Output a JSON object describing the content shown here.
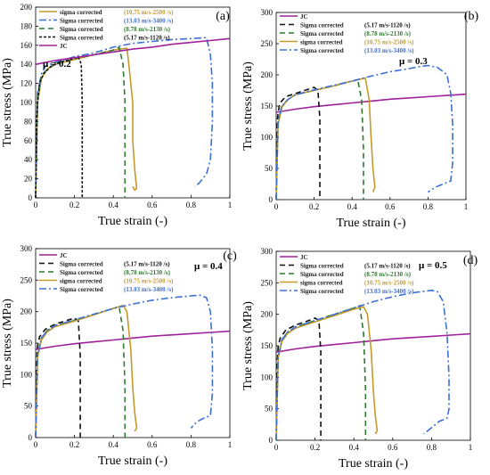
{
  "chart_data": [
    {
      "type": "line",
      "panel_label": "(a)",
      "mu_label": "μ = 0.2",
      "xlabel": "True strain (-)",
      "ylabel": "True stress (MPa)",
      "xlim": [
        0,
        1
      ],
      "ylim": [
        0,
        200
      ],
      "xticks": [
        "0",
        "0.2",
        "0.4",
        "0.6",
        "0.8",
        "1"
      ],
      "yticks": [
        "0",
        "20",
        "40",
        "60",
        "80",
        "100",
        "120",
        "140",
        "160",
        "180",
        "200"
      ],
      "xtick_values": [
        0,
        0.2,
        0.4,
        0.6,
        0.8,
        1
      ],
      "ytick_values": [
        0,
        20,
        40,
        60,
        80,
        100,
        120,
        140,
        160,
        180,
        200
      ],
      "legend_position": "top-left",
      "legend": [
        "sigma corrected",
        "Sigma corrected",
        "Sigma corrected",
        "Sigma corrected",
        "JC"
      ],
      "legend_condition": [
        "(10.75 m/s-2500 /s)",
        "(13.03 m/s-3400 /s)",
        "(8.78 m/s-2130 /s)",
        "(5.17 m/s-1120 /s)",
        ""
      ],
      "series": [
        {
          "color": "#c49a2a",
          "dash": "",
          "x": [
            0,
            0.01,
            0.03,
            0.06,
            0.1,
            0.2,
            0.3,
            0.4,
            0.47,
            0.48,
            0.5,
            0.5,
            0.51,
            0.52,
            0.51,
            0.5
          ],
          "y": [
            0,
            100,
            125,
            135,
            140,
            145,
            150,
            155,
            157,
            140,
            100,
            60,
            30,
            10,
            8,
            12
          ]
        },
        {
          "color": "#3b6fd6",
          "dash": "8,3,2,3",
          "x": [
            0,
            0.01,
            0.03,
            0.05,
            0.1,
            0.2,
            0.3,
            0.4,
            0.5,
            0.6,
            0.7,
            0.8,
            0.88,
            0.9,
            0.91,
            0.91,
            0.9,
            0.88,
            0.86,
            0.84,
            0.82
          ],
          "y": [
            0,
            110,
            130,
            138,
            142,
            148,
            152,
            158,
            162,
            164,
            166,
            167,
            168,
            150,
            120,
            80,
            40,
            25,
            20,
            15,
            12
          ]
        },
        {
          "color": "#2f7a2f",
          "dash": "6,4",
          "x": [
            0,
            0.01,
            0.03,
            0.06,
            0.1,
            0.2,
            0.3,
            0.4,
            0.43,
            0.45,
            0.46,
            0.46,
            0.46
          ],
          "y": [
            0,
            105,
            128,
            135,
            140,
            146,
            150,
            155,
            158,
            140,
            100,
            50,
            0
          ]
        },
        {
          "color": "#111111",
          "dash": "3,2",
          "x": [
            0,
            0.005,
            0.01,
            0.02,
            0.04,
            0.08,
            0.12,
            0.18,
            0.22,
            0.235,
            0.24,
            0.24,
            0.24
          ],
          "y": [
            0,
            80,
            100,
            120,
            130,
            138,
            142,
            145,
            148,
            140,
            100,
            50,
            0
          ]
        },
        {
          "color": "#a0219a",
          "dash": "",
          "x": [
            0,
            0.1,
            0.2,
            0.3,
            0.4,
            0.5,
            0.6,
            0.7,
            0.8,
            0.9,
            1.0
          ],
          "y": [
            140,
            144,
            147,
            150,
            153,
            156,
            158,
            161,
            163,
            165,
            167
          ]
        }
      ]
    },
    {
      "type": "line",
      "panel_label": "(b)",
      "mu_label": "μ = 0.3",
      "xlabel": "True strain (-)",
      "ylabel": "True stress (MPa)",
      "xlim": [
        0,
        1
      ],
      "ylim": [
        0,
        300
      ],
      "xticks": [
        "0",
        "0.2",
        "0.4",
        "0.6",
        "0.8",
        "1"
      ],
      "yticks": [
        "0",
        "50",
        "100",
        "150",
        "200",
        "250",
        "300"
      ],
      "xtick_values": [
        0,
        0.2,
        0.4,
        0.6,
        0.8,
        1
      ],
      "ytick_values": [
        0,
        50,
        100,
        150,
        200,
        250,
        300
      ],
      "legend_position": "top-left",
      "legend": [
        "JC",
        "Sigma corrected",
        "Sigma corrected",
        "sigma corrected",
        "Sigma corrected"
      ],
      "legend_condition": [
        "",
        "(5.17 m/s-1120 /s)",
        "(8.78 m/s-2130 /s)",
        "(10.75 m/s-2500 /s)",
        "(13.03 m/s-3400 /s)"
      ],
      "series": [
        {
          "color": "#a0219a",
          "dash": "",
          "x": [
            0,
            0.1,
            0.2,
            0.3,
            0.4,
            0.5,
            0.6,
            0.7,
            0.8,
            0.9,
            1.0
          ],
          "y": [
            140,
            145,
            149,
            152,
            155,
            158,
            161,
            163,
            165,
            167,
            169
          ]
        },
        {
          "color": "#111111",
          "dash": "6,4",
          "x": [
            0,
            0.005,
            0.01,
            0.02,
            0.05,
            0.1,
            0.15,
            0.2,
            0.22,
            0.23,
            0.23,
            0.23
          ],
          "y": [
            0,
            120,
            140,
            155,
            165,
            170,
            175,
            180,
            175,
            130,
            60,
            0
          ]
        },
        {
          "color": "#2f7a2f",
          "dash": "6,4",
          "x": [
            0,
            0.01,
            0.03,
            0.06,
            0.1,
            0.2,
            0.3,
            0.4,
            0.43,
            0.45,
            0.46,
            0.46
          ],
          "y": [
            0,
            125,
            150,
            160,
            168,
            175,
            182,
            190,
            192,
            160,
            80,
            0
          ]
        },
        {
          "color": "#c49a2a",
          "dash": "",
          "x": [
            0,
            0.01,
            0.03,
            0.06,
            0.1,
            0.2,
            0.3,
            0.4,
            0.47,
            0.49,
            0.5,
            0.51,
            0.52,
            0.51
          ],
          "y": [
            0,
            120,
            148,
            160,
            168,
            175,
            182,
            190,
            195,
            160,
            100,
            50,
            20,
            12
          ]
        },
        {
          "color": "#3b6fd6",
          "dash": "8,3,2,3",
          "x": [
            0,
            0.01,
            0.03,
            0.06,
            0.1,
            0.2,
            0.3,
            0.4,
            0.5,
            0.6,
            0.7,
            0.75,
            0.8,
            0.85,
            0.9,
            0.92,
            0.93,
            0.93,
            0.92,
            0.88,
            0.84,
            0.8
          ],
          "y": [
            0,
            125,
            150,
            160,
            168,
            176,
            183,
            190,
            198,
            205,
            210,
            213,
            215,
            212,
            200,
            170,
            120,
            60,
            30,
            25,
            20,
            12
          ]
        }
      ]
    },
    {
      "type": "line",
      "panel_label": "(c)",
      "mu_label": "μ = 0.4",
      "xlabel": "True strain (-)",
      "ylabel": "True stress (MPa)",
      "xlim": [
        0,
        1
      ],
      "ylim": [
        0,
        300
      ],
      "xticks": [
        "0",
        "0.2",
        "0.4",
        "0.6",
        "0.8",
        "1"
      ],
      "yticks": [
        "0",
        "50",
        "100",
        "150",
        "200",
        "250",
        "300"
      ],
      "xtick_values": [
        0,
        0.2,
        0.4,
        0.6,
        0.8,
        1
      ],
      "ytick_values": [
        0,
        50,
        100,
        150,
        200,
        250,
        300
      ],
      "legend_position": "top-left",
      "legend": [
        "JC",
        "Sigma corrected",
        "Sigma corrected",
        "sigma corrected",
        "Sigma corrected"
      ],
      "legend_condition": [
        "",
        "(5.17 m/s-1120 /s)",
        "(8.78 m/s-2130 /s)",
        "(10.75 m/s-2500 /s)",
        "(13.03 m/s-3400 /s)"
      ],
      "series": [
        {
          "color": "#a0219a",
          "dash": "",
          "x": [
            0,
            0.1,
            0.2,
            0.3,
            0.4,
            0.5,
            0.6,
            0.7,
            0.8,
            0.9,
            1.0
          ],
          "y": [
            140,
            145,
            149,
            152,
            155,
            158,
            161,
            163,
            165,
            167,
            169
          ]
        },
        {
          "color": "#111111",
          "dash": "6,4",
          "x": [
            0,
            0.005,
            0.01,
            0.02,
            0.05,
            0.1,
            0.15,
            0.2,
            0.22,
            0.23,
            0.23,
            0.23
          ],
          "y": [
            0,
            120,
            145,
            160,
            172,
            180,
            185,
            190,
            185,
            130,
            60,
            0
          ]
        },
        {
          "color": "#2f7a2f",
          "dash": "6,4",
          "x": [
            0,
            0.01,
            0.03,
            0.06,
            0.1,
            0.2,
            0.3,
            0.4,
            0.43,
            0.45,
            0.46,
            0.46
          ],
          "y": [
            0,
            130,
            158,
            170,
            178,
            186,
            195,
            205,
            208,
            170,
            80,
            0
          ]
        },
        {
          "color": "#c49a2a",
          "dash": "",
          "x": [
            0,
            0.01,
            0.03,
            0.06,
            0.1,
            0.2,
            0.3,
            0.4,
            0.45,
            0.47,
            0.49,
            0.5,
            0.51,
            0.52,
            0.51
          ],
          "y": [
            0,
            128,
            155,
            168,
            176,
            185,
            195,
            205,
            210,
            200,
            140,
            80,
            40,
            15,
            10
          ]
        },
        {
          "color": "#3b6fd6",
          "dash": "8,3,2,3",
          "x": [
            0,
            0.01,
            0.03,
            0.06,
            0.1,
            0.2,
            0.3,
            0.4,
            0.5,
            0.6,
            0.7,
            0.8,
            0.85,
            0.88,
            0.9,
            0.91,
            0.91,
            0.9,
            0.86,
            0.83,
            0.8
          ],
          "y": [
            0,
            130,
            158,
            170,
            178,
            187,
            196,
            205,
            212,
            218,
            222,
            225,
            226,
            222,
            200,
            140,
            70,
            35,
            30,
            25,
            15
          ]
        }
      ]
    },
    {
      "type": "line",
      "panel_label": "(d)",
      "mu_label": "μ = 0.5",
      "xlabel": "True strain (-)",
      "ylabel": "True stress (MPa)",
      "xlim": [
        0,
        1
      ],
      "ylim": [
        0,
        300
      ],
      "xticks": [
        "0",
        "0.2",
        "0.4",
        "0.6",
        "0.8",
        "1"
      ],
      "yticks": [
        "0",
        "50",
        "100",
        "150",
        "200",
        "250",
        "300"
      ],
      "xtick_values": [
        0,
        0.2,
        0.4,
        0.6,
        0.8,
        1
      ],
      "ytick_values": [
        0,
        50,
        100,
        150,
        200,
        250,
        300
      ],
      "legend_position": "top-left",
      "legend": [
        "JC",
        "Sigma corrected",
        "Sigma corrected",
        "sigma corrected",
        "Sigma corrected"
      ],
      "legend_condition": [
        "",
        "(5.17 m/s-1120 /s)",
        "(8.78 m/s-2130 /s)",
        "(10.75 m/s-2500 /s)",
        "(13.03 m/s-3400 /s)"
      ],
      "series": [
        {
          "color": "#a0219a",
          "dash": "",
          "x": [
            0,
            0.1,
            0.2,
            0.3,
            0.4,
            0.5,
            0.6,
            0.7,
            0.8,
            0.9,
            1.0
          ],
          "y": [
            140,
            145,
            149,
            152,
            155,
            158,
            161,
            163,
            165,
            167,
            169
          ]
        },
        {
          "color": "#111111",
          "dash": "6,4",
          "x": [
            0,
            0.005,
            0.01,
            0.02,
            0.05,
            0.1,
            0.15,
            0.2,
            0.22,
            0.23,
            0.23,
            0.23
          ],
          "y": [
            0,
            122,
            148,
            162,
            175,
            183,
            188,
            194,
            190,
            140,
            60,
            0
          ]
        },
        {
          "color": "#2f7a2f",
          "dash": "6,4",
          "x": [
            0,
            0.01,
            0.03,
            0.06,
            0.1,
            0.2,
            0.3,
            0.4,
            0.43,
            0.45,
            0.46,
            0.46
          ],
          "y": [
            0,
            132,
            160,
            172,
            180,
            190,
            200,
            210,
            214,
            170,
            80,
            0
          ]
        },
        {
          "color": "#c49a2a",
          "dash": "",
          "x": [
            0,
            0.01,
            0.03,
            0.06,
            0.1,
            0.2,
            0.3,
            0.4,
            0.45,
            0.47,
            0.49,
            0.5,
            0.51,
            0.52,
            0.51
          ],
          "y": [
            0,
            130,
            157,
            170,
            178,
            188,
            198,
            208,
            212,
            200,
            140,
            80,
            40,
            15,
            10
          ]
        },
        {
          "color": "#3b6fd6",
          "dash": "8,3,2,3",
          "x": [
            0,
            0.01,
            0.03,
            0.06,
            0.1,
            0.2,
            0.3,
            0.4,
            0.5,
            0.6,
            0.7,
            0.75,
            0.8,
            0.83,
            0.86,
            0.88,
            0.89,
            0.89,
            0.88,
            0.84,
            0.8,
            0.76
          ],
          "y": [
            0,
            132,
            160,
            172,
            180,
            190,
            200,
            210,
            220,
            228,
            234,
            236,
            238,
            236,
            220,
            170,
            100,
            50,
            35,
            30,
            20,
            10
          ]
        }
      ]
    }
  ]
}
